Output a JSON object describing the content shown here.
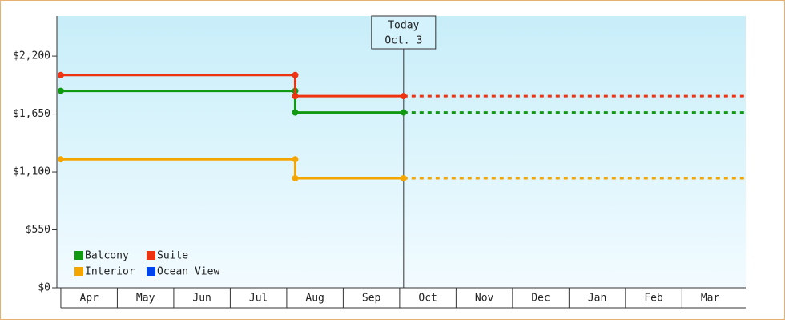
{
  "chart_data": {
    "type": "step",
    "categories": [
      "Apr",
      "May",
      "Jun",
      "Jul",
      "Aug",
      "Sep",
      "Oct",
      "Nov",
      "Dec",
      "Jan",
      "Feb",
      "Mar"
    ],
    "xlim": [
      -0.07,
      12.13
    ],
    "ylim": [
      0,
      2580
    ],
    "yticks": [
      {
        "value": 0,
        "label": "$0"
      },
      {
        "value": 550,
        "label": "$550"
      },
      {
        "value": 1100,
        "label": "$1,100"
      },
      {
        "value": 1650,
        "label": "$1,650"
      },
      {
        "value": 2200,
        "label": "$2,200"
      }
    ],
    "today": {
      "label": [
        "Today",
        "Oct. 3"
      ],
      "x": 6.07
    },
    "series": [
      {
        "name": "Balcony",
        "color": "#119911",
        "x": [
          0,
          4.15,
          4.15,
          6.07
        ],
        "values": [
          1870,
          1870,
          1665,
          1665
        ]
      },
      {
        "name": "Suite",
        "color": "#ee3311",
        "x": [
          0,
          4.15,
          4.15,
          6.07
        ],
        "values": [
          2020,
          2020,
          1820,
          1820
        ]
      },
      {
        "name": "Interior",
        "color": "#f5a500",
        "x": [
          0,
          4.15,
          4.15,
          6.07
        ],
        "values": [
          1220,
          1220,
          1040,
          1040
        ]
      },
      {
        "name": "Ocean View",
        "color": "#0044ee",
        "x": [],
        "values": []
      }
    ]
  }
}
